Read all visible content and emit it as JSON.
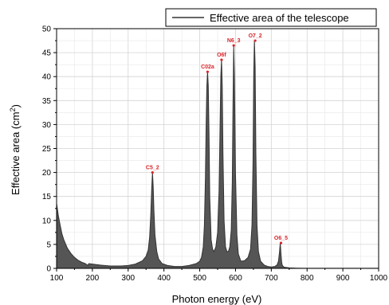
{
  "chart_data": {
    "type": "area",
    "title": "",
    "xlabel": "Photon energy (eV)",
    "ylabel": "Effective area (cm",
    "ylabel_sup": "2",
    "ylabel_end": ")",
    "xlim": [
      100,
      1000
    ],
    "ylim": [
      0,
      50
    ],
    "x_ticks": [
      "100",
      "200",
      "300",
      "400",
      "500",
      "600",
      "700",
      "800",
      "900",
      "1000"
    ],
    "y_ticks": [
      "0",
      "5",
      "10",
      "15",
      "20",
      "25",
      "30",
      "35",
      "40",
      "45",
      "50"
    ],
    "grid": true,
    "legend_position": "top-right",
    "fill_color": "#555555",
    "line_color": "#333333",
    "label_color": "#d9262b",
    "series": [
      {
        "name": "Effective area of the telescope",
        "x": [
          100,
          102,
          105,
          110,
          115,
          120,
          130,
          140,
          150,
          160,
          170,
          180,
          188,
          189,
          190,
          200,
          220,
          250,
          280,
          300,
          320,
          340,
          350,
          356,
          360,
          363,
          366,
          368,
          370,
          372,
          375,
          380,
          385,
          395,
          410,
          430,
          450,
          470,
          490,
          500,
          505,
          510,
          513,
          516,
          518,
          520,
          522,
          524,
          526,
          528,
          532,
          536,
          540,
          545,
          550,
          554,
          557,
          559,
          561,
          563,
          565,
          568,
          572,
          576,
          580,
          584,
          588,
          591,
          593,
          595,
          597,
          600,
          604,
          608,
          615,
          625,
          635,
          642,
          646,
          649,
          651,
          653,
          655,
          657,
          660,
          664,
          670,
          680,
          690,
          700,
          710,
          716,
          720,
          723,
          725,
          727,
          729,
          731,
          735,
          740,
          750,
          770,
          800,
          850,
          900,
          950,
          1000
        ],
        "y": [
          13.5,
          12.5,
          11,
          9,
          7.2,
          6,
          4.2,
          3.1,
          2.3,
          1.7,
          1.3,
          1.0,
          0.6,
          0.9,
          1.0,
          0.9,
          0.7,
          0.5,
          0.5,
          0.6,
          0.9,
          1.6,
          2.5,
          3.8,
          6.5,
          11,
          17,
          20,
          17,
          12,
          7,
          3.5,
          2.0,
          1.0,
          0.6,
          0.4,
          0.4,
          0.6,
          1.0,
          1.5,
          2.3,
          4.5,
          9,
          19,
          30,
          38,
          41,
          38,
          28,
          15,
          6,
          4,
          3.5,
          4.5,
          7.5,
          16,
          30,
          40,
          43.5,
          38,
          24,
          10,
          4.5,
          3.5,
          3.5,
          4.5,
          8,
          18,
          34,
          46.5,
          40,
          20,
          7,
          3,
          1.5,
          1.6,
          2.3,
          4,
          9,
          22,
          40,
          47.5,
          42,
          24,
          9,
          3.5,
          1.5,
          0.7,
          0.4,
          0.3,
          0.4,
          0.7,
          1.5,
          3.5,
          5.3,
          3.0,
          1.2,
          0.6,
          0.3,
          0.2,
          0.1,
          0.05,
          0.02,
          0.01,
          0.01,
          0.01,
          0.01
        ]
      }
    ],
    "peak_labels": [
      {
        "text": "C5_2",
        "x": 368,
        "y": 20
      },
      {
        "text": "C02a",
        "x": 522,
        "y": 41
      },
      {
        "text": "O6f",
        "x": 561,
        "y": 43.5
      },
      {
        "text": "N6_3",
        "x": 595,
        "y": 46.5
      },
      {
        "text": "O7_2",
        "x": 655,
        "y": 47.5
      },
      {
        "text": "O6_5",
        "x": 727,
        "y": 5.3
      }
    ]
  }
}
